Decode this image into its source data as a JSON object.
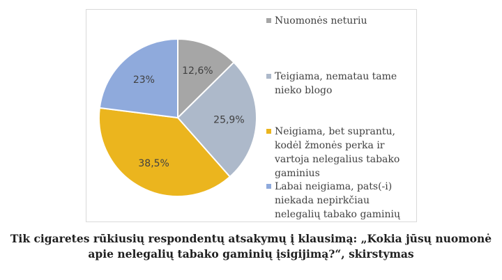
{
  "chart_data": {
    "type": "pie",
    "categories": [
      "Nuomonės neturiu",
      "Teigiama, nematau tame nieko blogo",
      "Neigiama, bet suprantu, kodėl žmonės perka ir vartoja nelegalius tabako gaminius",
      "Labai neigiama, pats(-i) niekada nepirkčiau nelegalių tabako gaminių"
    ],
    "values": [
      12.6,
      25.9,
      38.5,
      23
    ],
    "data_labels": [
      "12,6%",
      "25,9%",
      "38,5%",
      "23%"
    ],
    "colors": [
      "#a6a6a6",
      "#adb9ca",
      "#ebb51e",
      "#8faadc"
    ],
    "legend_position": "right"
  },
  "caption": {
    "line1": "Tik cigaretes rūkiusių respondentų atsakymų į klausimą: „Kokia jūsų nuomonė",
    "line2": "apie nelegalių tabako gaminių įsigijimą?“, skirstymas"
  }
}
